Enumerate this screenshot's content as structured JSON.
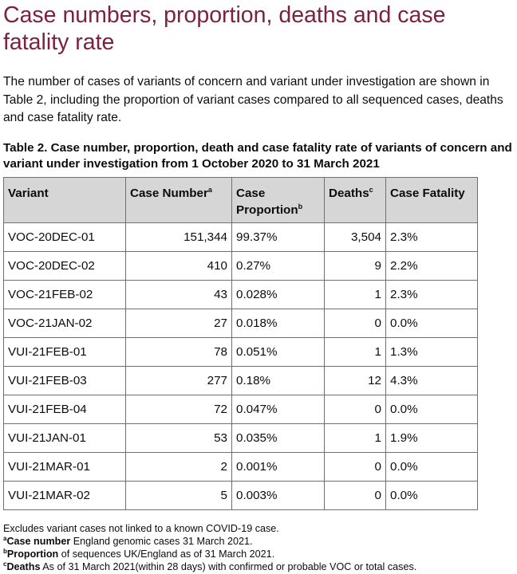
{
  "heading": "Case numbers, proportion, deaths and case fatality rate",
  "intro": "The number of cases of variants of concern and variant under investigation are shown in Table 2, including the proportion of variant cases compared to all sequenced cases, deaths and case fatality rate.",
  "table": {
    "caption": "Table 2. Case number, proportion, death and case fatality rate of variants of concern and variant under investigation from 1 October 2020 to 31 March 2021",
    "headers": {
      "variant": "Variant",
      "case_number": "Case Number",
      "case_number_note": "a",
      "case_proportion": "Case Proportion",
      "case_proportion_note": "b",
      "deaths": "Deaths",
      "deaths_note": "c",
      "case_fatality": "Case Fatality"
    },
    "rows": [
      {
        "variant": "VOC-20DEC-01",
        "case_number": "151,344",
        "case_proportion": "99.37%",
        "deaths": "3,504",
        "case_fatality": "2.3%"
      },
      {
        "variant": "VOC-20DEC-02",
        "case_number": "410",
        "case_proportion": "0.27%",
        "deaths": "9",
        "case_fatality": "2.2%"
      },
      {
        "variant": "VOC-21FEB-02",
        "case_number": "43",
        "case_proportion": "0.028%",
        "deaths": "1",
        "case_fatality": "2.3%"
      },
      {
        "variant": "VOC-21JAN-02",
        "case_number": "27",
        "case_proportion": "0.018%",
        "deaths": "0",
        "case_fatality": "0.0%"
      },
      {
        "variant": "VUI-21FEB-01",
        "case_number": "78",
        "case_proportion": "0.051%",
        "deaths": "1",
        "case_fatality": "1.3%"
      },
      {
        "variant": "VUI-21FEB-03",
        "case_number": "277",
        "case_proportion": "0.18%",
        "deaths": "12",
        "case_fatality": "4.3%"
      },
      {
        "variant": "VUI-21FEB-04",
        "case_number": "72",
        "case_proportion": "0.047%",
        "deaths": "0",
        "case_fatality": "0.0%"
      },
      {
        "variant": "VUI-21JAN-01",
        "case_number": "53",
        "case_proportion": "0.035%",
        "deaths": "1",
        "case_fatality": "1.9%"
      },
      {
        "variant": "VUI-21MAR-01",
        "case_number": "2",
        "case_proportion": "0.001%",
        "deaths": "0",
        "case_fatality": "0.0%"
      },
      {
        "variant": "VUI-21MAR-02",
        "case_number": "5",
        "case_proportion": "0.003%",
        "deaths": "0",
        "case_fatality": "0.0%"
      }
    ]
  },
  "footnotes": {
    "general": "Excludes variant cases not linked to a known COVID-19 case.",
    "a": {
      "marker": "a",
      "bold": "Case number",
      "text": " England genomic cases 31 March 2021."
    },
    "b": {
      "marker": "b",
      "bold": "Proportion",
      "text": " of sequences UK/England as of 31 March 2021."
    },
    "c": {
      "marker": "c",
      "bold": "Deaths",
      "text": " As of 31 March 2021(within 28 days) with confirmed or probable VOC or total cases."
    }
  },
  "colors": {
    "heading": "#7b2240",
    "header_background": "#d6d6d6",
    "border": "#6f6f6f",
    "text": "#0b0c0c"
  }
}
